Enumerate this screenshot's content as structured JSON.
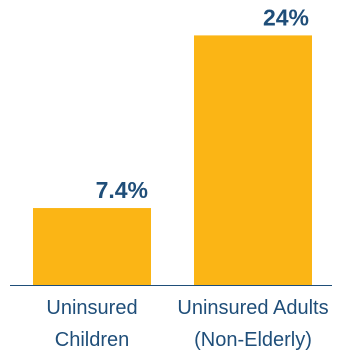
{
  "colors": {
    "bar": "#FBB515",
    "value_text": "#1F4E79",
    "category_text": "#1F4E79",
    "axis": "#1F4E79",
    "background": "#FFFFFF"
  },
  "chart_data": {
    "type": "bar",
    "categories": [
      [
        "Uninsured",
        "Children"
      ],
      [
        "Uninsured Adults",
        "(Non-Elderly)"
      ]
    ],
    "values": [
      7.4,
      24
    ],
    "data_labels": [
      "7.4%",
      "24%"
    ],
    "title": "",
    "xlabel": "",
    "ylabel": "",
    "ylim": [
      0,
      25
    ],
    "grid": false,
    "legend": "none"
  }
}
